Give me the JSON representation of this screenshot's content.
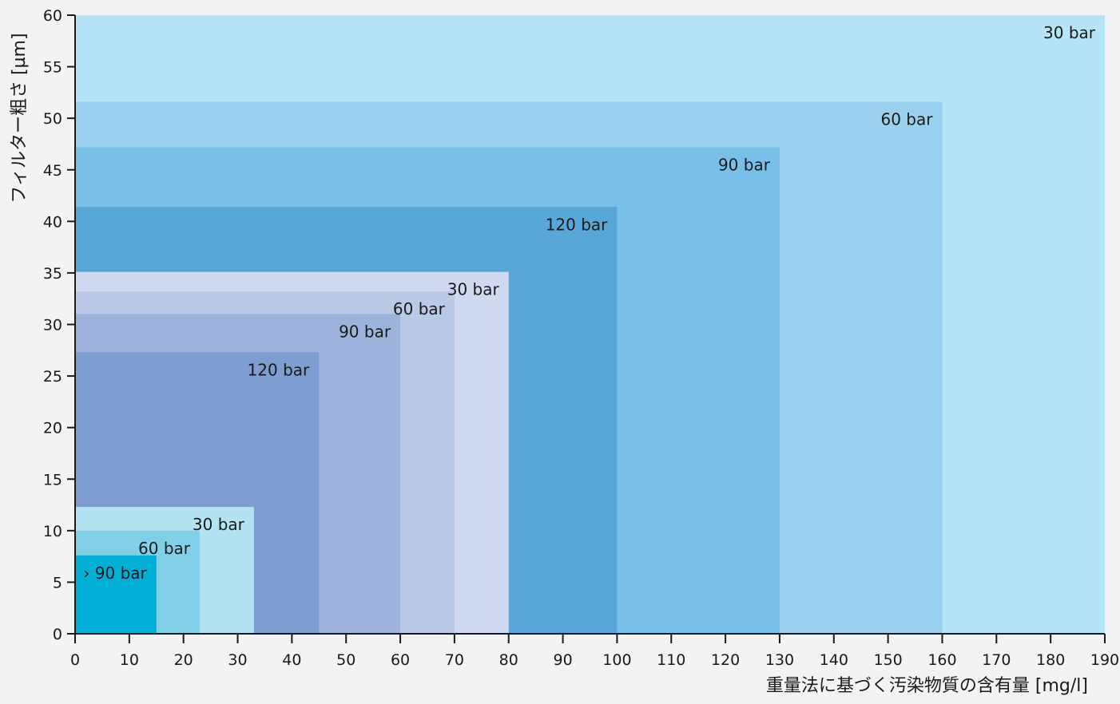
{
  "chart_data": {
    "type": "area",
    "title": "",
    "xlabel": "重量法に基づく汚染物質の含有量 [mg/l]",
    "ylabel": "フィルター粗さ [µm]",
    "xlim": [
      0,
      190
    ],
    "ylim": [
      0,
      60
    ],
    "xticks": [
      0,
      10,
      20,
      30,
      40,
      50,
      60,
      70,
      80,
      90,
      100,
      110,
      120,
      130,
      140,
      150,
      160,
      170,
      180,
      190
    ],
    "yticks": [
      0,
      5,
      10,
      15,
      20,
      25,
      30,
      35,
      40,
      45,
      50,
      55,
      60
    ],
    "regions": [
      {
        "label": "30 bar",
        "x": 190,
        "y": 60,
        "color": "#b5e4f6"
      },
      {
        "label": "60 bar",
        "x": 160,
        "y": 51.6,
        "color": "#9ad1ef"
      },
      {
        "label": "90 bar",
        "x": 130,
        "y": 47.2,
        "color": "#79c0e8"
      },
      {
        "label": "120 bar",
        "x": 100,
        "y": 41.4,
        "color": "#59a6d9"
      },
      {
        "label": "30 bar",
        "x": 80,
        "y": 35.1,
        "color": "#cfd9ef"
      },
      {
        "label": "60 bar",
        "x": 70,
        "y": 33.2,
        "color": "#bac9e6"
      },
      {
        "label": "90 bar",
        "x": 60,
        "y": 31.0,
        "color": "#9db3db"
      },
      {
        "label": "120 bar",
        "x": 45,
        "y": 27.3,
        "color": "#7e9dd0"
      },
      {
        "label": "30 bar",
        "x": 33,
        "y": 12.3,
        "color": "#b3e2f1"
      },
      {
        "label": "60 bar",
        "x": 23,
        "y": 10.0,
        "color": "#82d0e8"
      },
      {
        "label": "› 90 bar",
        "x": 15,
        "y": 7.6,
        "color": "#00aed6"
      }
    ],
    "grid": false,
    "legend": "none"
  }
}
